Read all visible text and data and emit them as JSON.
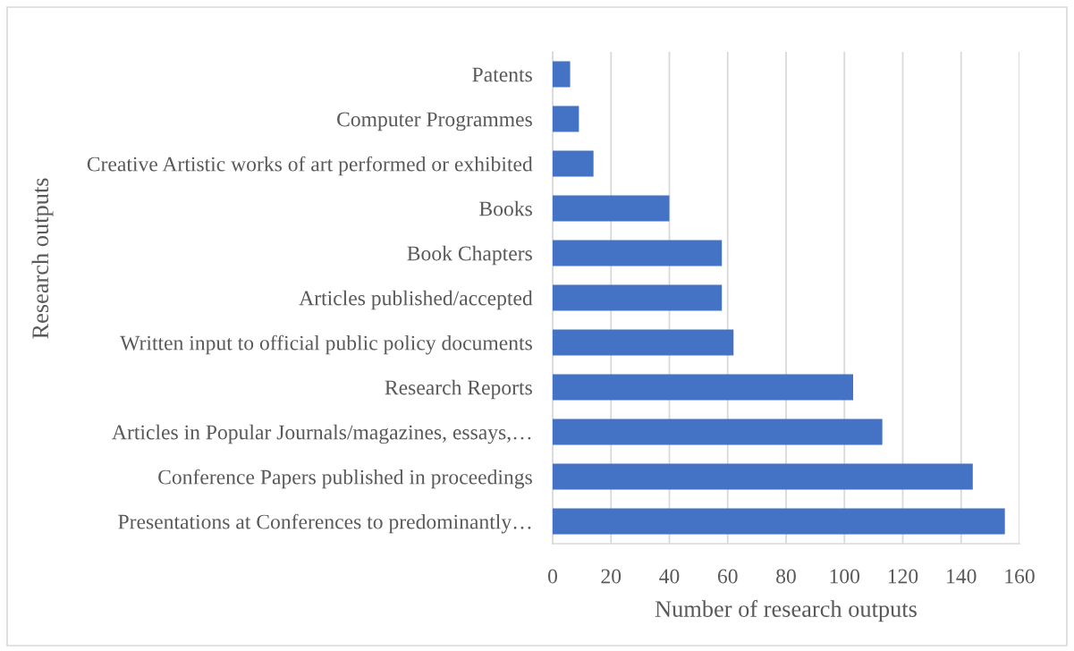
{
  "chart_data": {
    "type": "bar",
    "orientation": "horizontal",
    "xlabel": "Number of research outputs",
    "ylabel": "Research outputs",
    "categories": [
      "Patents",
      "Computer Programmes",
      "Creative Artistic works of art performed or exhibited",
      "Books",
      "Book Chapters",
      "Articles published/accepted",
      "Written input to official public policy documents",
      "Research Reports",
      "Articles in Popular Journals/magazines, essays,…",
      "Conference Papers published in proceedings",
      "Presentations at Conferences to predominantly…"
    ],
    "values": [
      6,
      9,
      14,
      40,
      58,
      58,
      62,
      103,
      113,
      144,
      155
    ],
    "color": "#4472c4",
    "xlim": [
      0,
      160
    ],
    "xticks": [
      0,
      20,
      40,
      60,
      80,
      100,
      120,
      140,
      160
    ],
    "grid": "x"
  }
}
